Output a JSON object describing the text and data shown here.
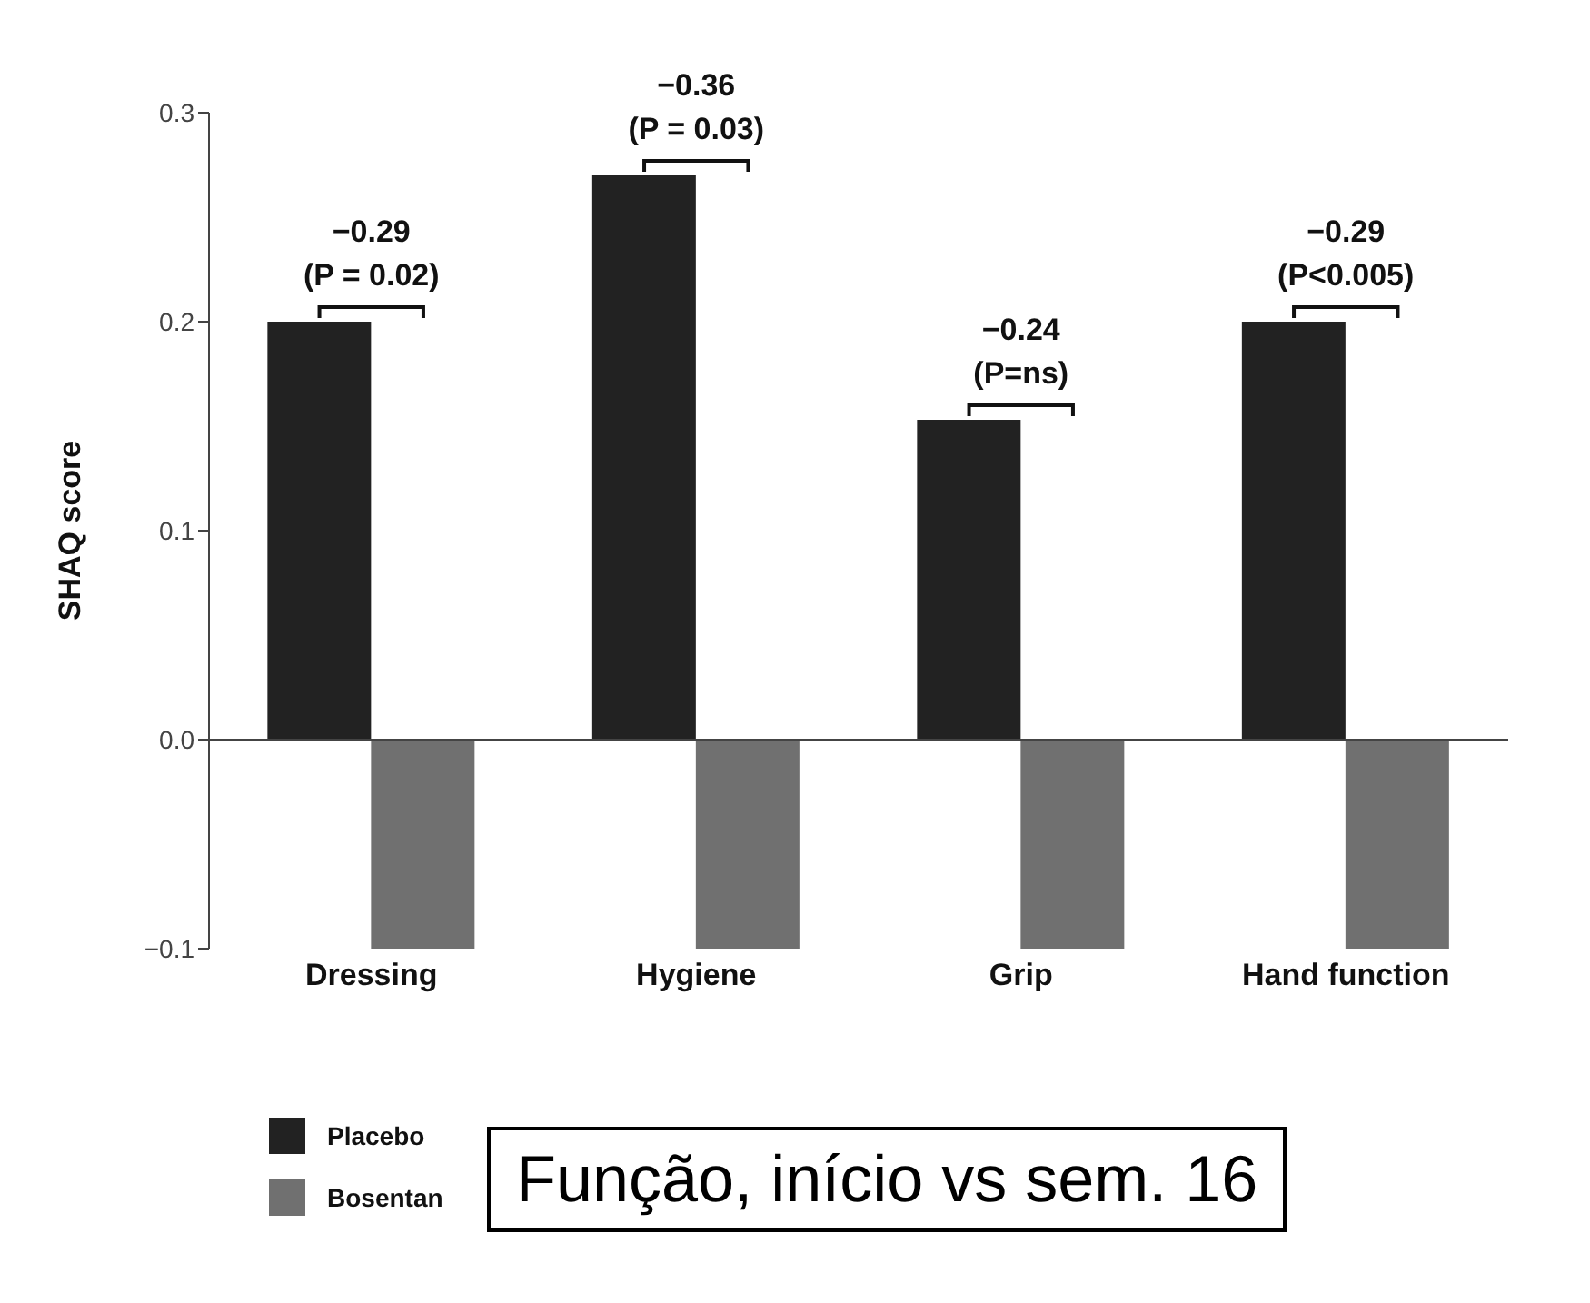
{
  "chart_data": {
    "type": "bar",
    "ylabel": "SHAQ score",
    "categories": [
      "Dressing",
      "Hygiene",
      "Grip",
      "Hand function"
    ],
    "series": [
      {
        "name": "Placebo",
        "color": "#222222",
        "values": [
          0.2,
          0.27,
          0.153,
          0.2
        ]
      },
      {
        "name": "Bosentan",
        "color": "#707070",
        "values": [
          -0.1,
          -0.1,
          -0.1,
          -0.1
        ]
      }
    ],
    "ylim": [
      -0.1,
      0.3
    ],
    "yticks": [
      {
        "value": -0.1,
        "label": "−0.1"
      },
      {
        "value": 0,
        "label": "0.0"
      },
      0.1,
      0.2,
      0.3
    ],
    "ref_lines": [
      {
        "axis": "y",
        "value": 0,
        "color": "#444444"
      }
    ],
    "grid": false,
    "legend": "bottom left",
    "annotations": [
      {
        "text": "−0.29\n(P = 0.02)",
        "x": "Dressing",
        "y": 0.2
      },
      {
        "text": "−0.36\n(P = 0.03)",
        "x": "Hygiene",
        "y": 0.27
      },
      {
        "text": "−0.24\n(P=ns)",
        "x": "Grip",
        "y": 0.153
      },
      {
        "text": "−0.29\n(P<0.005)",
        "x": "Hand function",
        "y": 0.2
      },
      "Função, início vs sem. 16"
    ]
  }
}
